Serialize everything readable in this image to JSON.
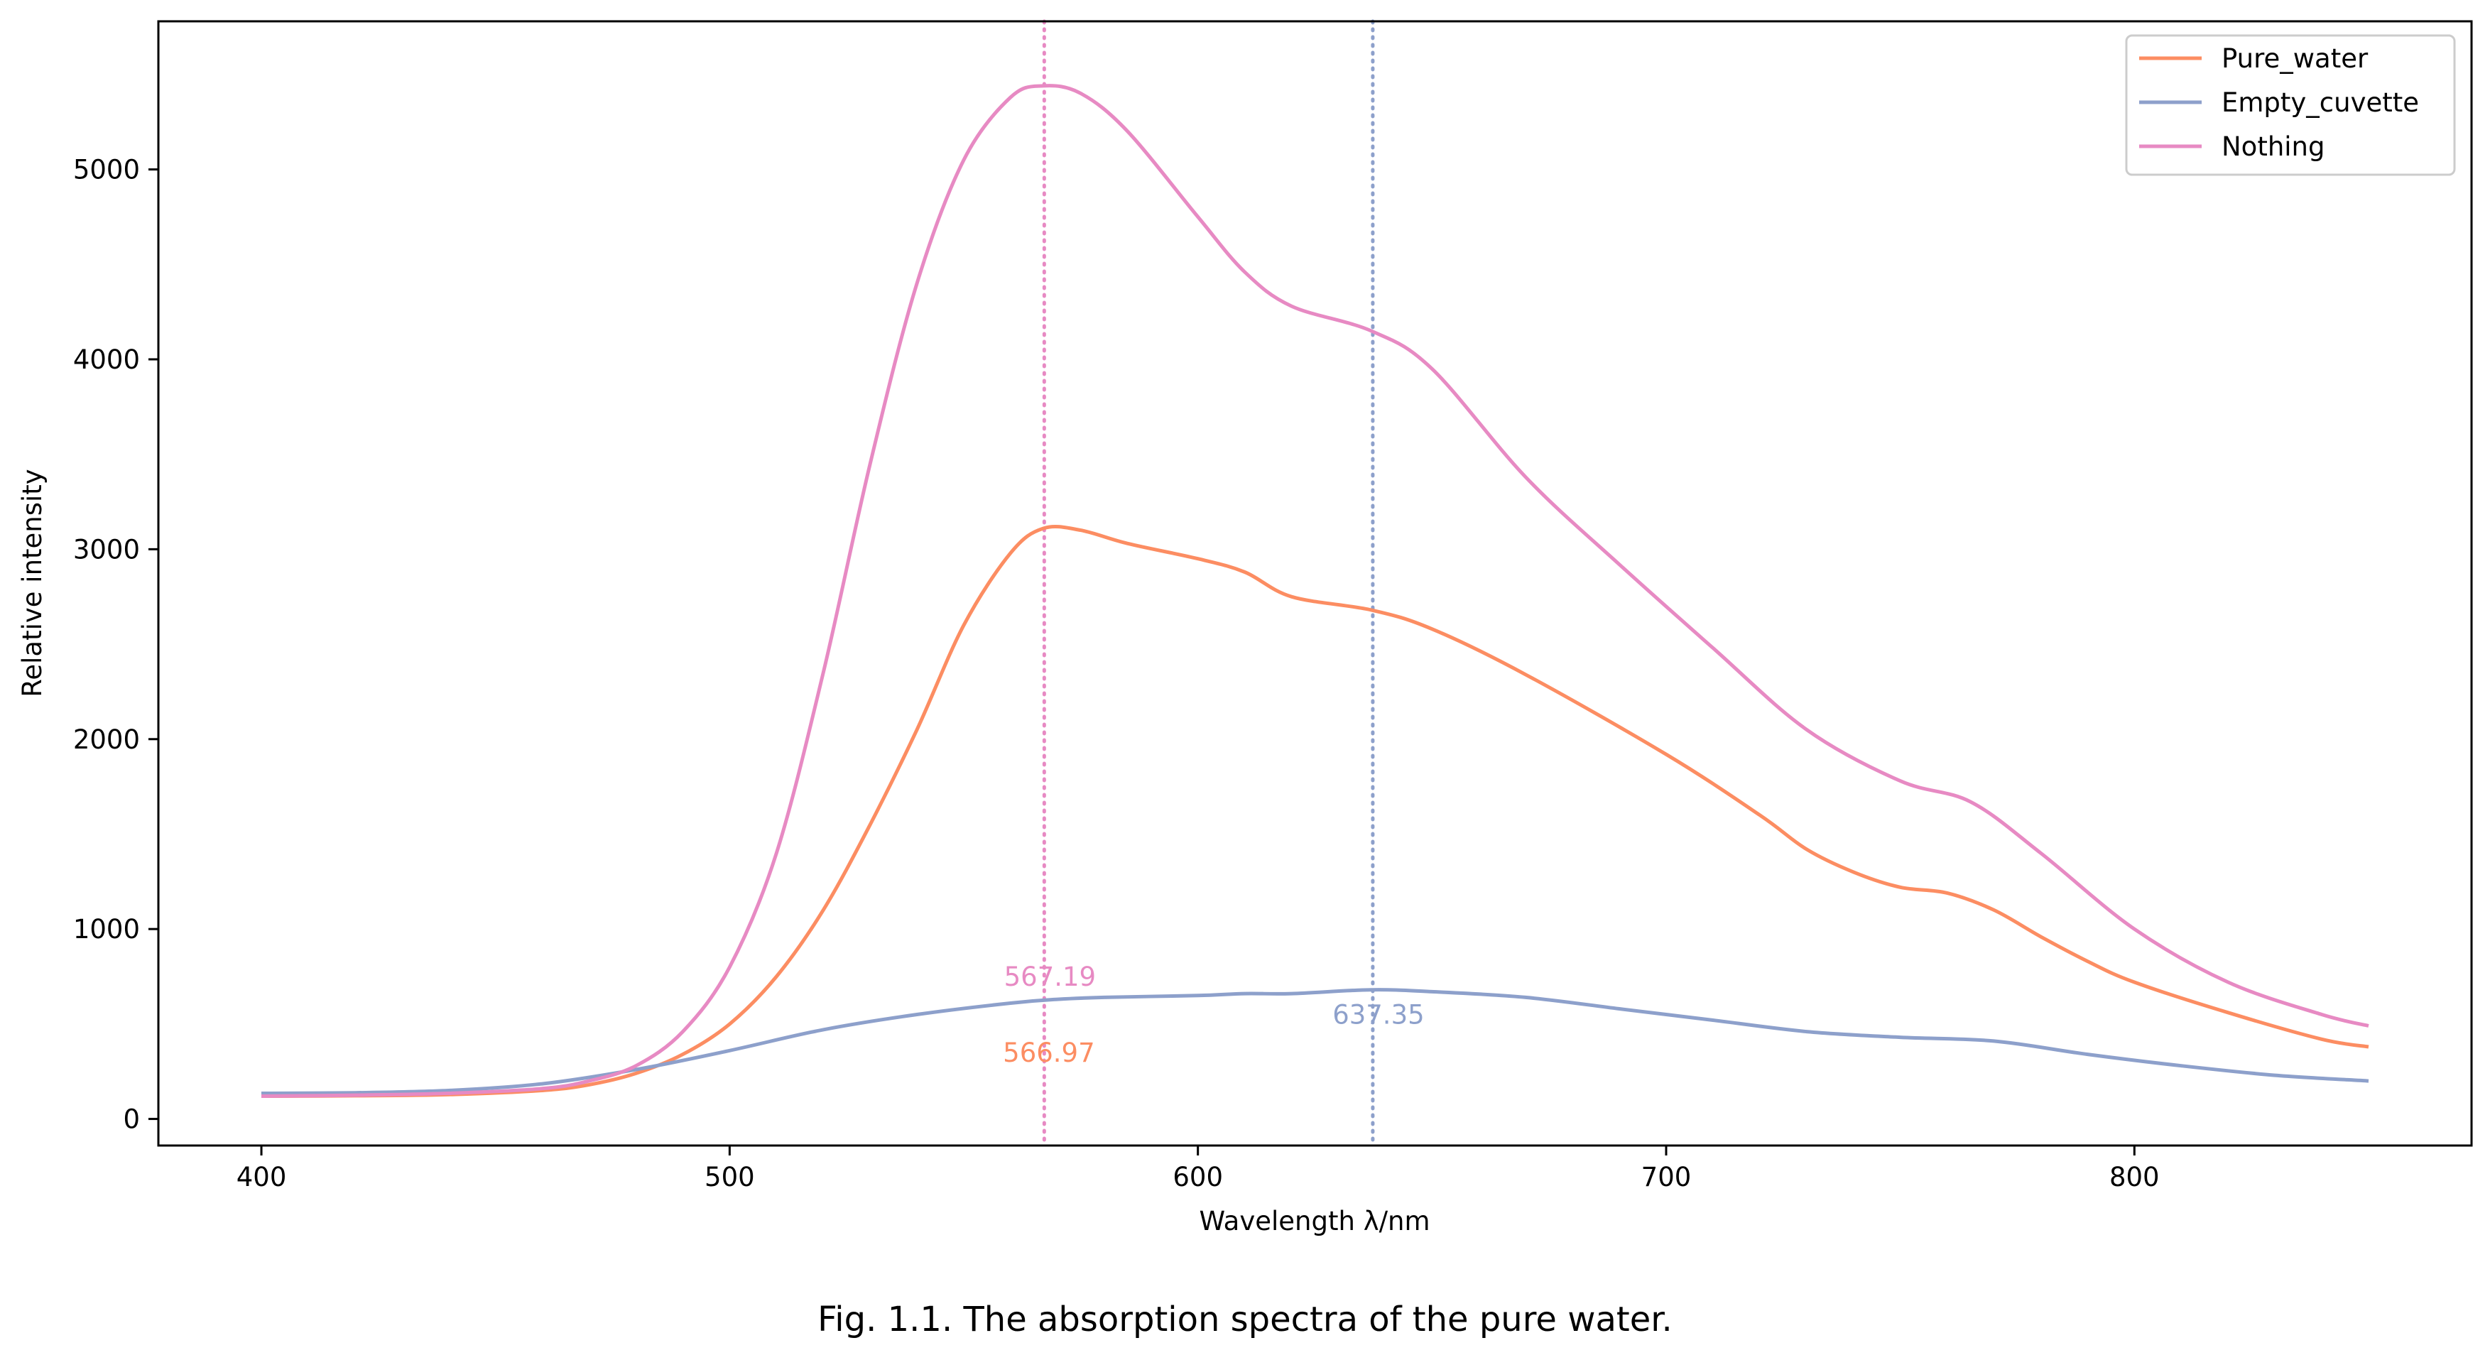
{
  "caption": "Fig. 1.1. The absorption spectra of the pure water.",
  "chart_data": {
    "type": "line",
    "xlabel": "Wavelength λ/nm",
    "ylabel": "Relative intensity",
    "xlim": [
      378,
      872
    ],
    "ylim": [
      -140,
      5780
    ],
    "xticks": [
      400,
      500,
      600,
      700,
      800
    ],
    "yticks": [
      0,
      1000,
      2000,
      3000,
      4000,
      5000
    ],
    "grid": false,
    "legend_position": "top-right",
    "series": [
      {
        "name": "Pure_water",
        "color": "#fc8d62",
        "x": [
          400,
          420,
          440,
          460,
          470,
          480,
          490,
          500,
          510,
          520,
          530,
          540,
          550,
          560,
          567,
          575,
          585,
          600,
          610,
          620,
          637,
          650,
          670,
          700,
          720,
          730,
          740,
          750,
          760,
          770,
          780,
          790,
          800,
          820,
          840,
          850
        ],
        "y": [
          120,
          122,
          128,
          150,
          180,
          240,
          340,
          500,
          750,
          1100,
          1550,
          2050,
          2600,
          2980,
          3110,
          3100,
          3030,
          2950,
          2880,
          2750,
          2680,
          2580,
          2340,
          1920,
          1600,
          1420,
          1300,
          1220,
          1190,
          1100,
          960,
          830,
          720,
          560,
          420,
          380
        ]
      },
      {
        "name": "Empty_cuvette",
        "color": "#8da0cb",
        "x": [
          400,
          420,
          440,
          460,
          480,
          500,
          520,
          540,
          560,
          570,
          580,
          600,
          610,
          620,
          637,
          650,
          670,
          690,
          710,
          730,
          750,
          770,
          790,
          810,
          830,
          850
        ],
        "y": [
          135,
          138,
          150,
          185,
          260,
          360,
          470,
          550,
          610,
          630,
          640,
          650,
          660,
          660,
          680,
          670,
          640,
          580,
          520,
          460,
          430,
          410,
          340,
          280,
          230,
          200
        ]
      },
      {
        "name": "Nothing",
        "color": "#e78ac3",
        "x": [
          400,
          420,
          440,
          460,
          470,
          480,
          490,
          500,
          510,
          520,
          530,
          540,
          550,
          560,
          567,
          575,
          585,
          600,
          610,
          620,
          637,
          650,
          670,
          690,
          710,
          730,
          750,
          765,
          780,
          800,
          820,
          840,
          850
        ],
        "y": [
          120,
          125,
          135,
          160,
          200,
          280,
          460,
          800,
          1400,
          2350,
          3450,
          4400,
          5050,
          5380,
          5440,
          5400,
          5200,
          4750,
          4460,
          4280,
          4150,
          3950,
          3380,
          2920,
          2480,
          2050,
          1780,
          1670,
          1400,
          1000,
          720,
          550,
          490
        ]
      }
    ],
    "vlines": [
      {
        "x": 567.19,
        "color": "#e78ac3",
        "style": "dotted"
      },
      {
        "x": 637.35,
        "color": "#8da0cb",
        "style": "dotted"
      }
    ],
    "annotations": [
      {
        "text": "567.19",
        "x": 567.19,
        "y": 750,
        "color": "#e78ac3"
      },
      {
        "text": "566.97",
        "x": 566.97,
        "y": 350,
        "color": "#fc8d62"
      },
      {
        "text": "637.35",
        "x": 637.35,
        "y": 550,
        "color": "#8da0cb"
      }
    ]
  }
}
